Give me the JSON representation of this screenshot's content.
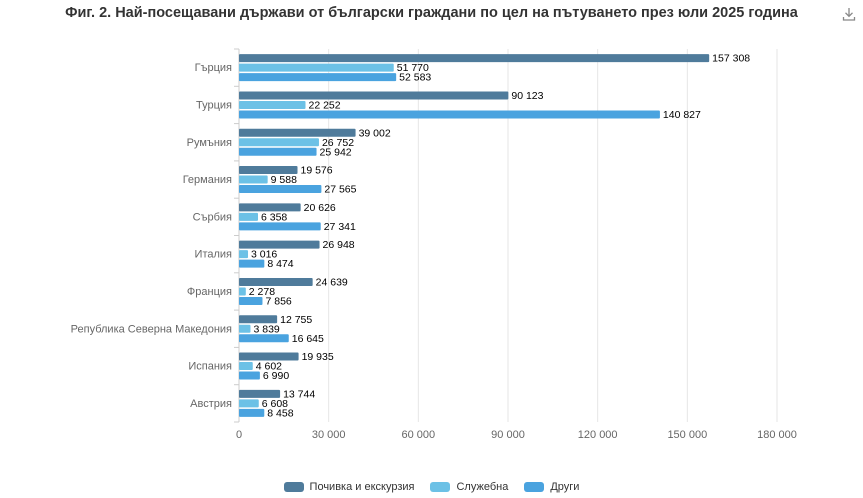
{
  "title": "Фиг. 2. Най-посещавани държави от български граждани по цел на пътуването през юли 2025 година",
  "icons": {
    "download": "download-icon"
  },
  "chart_data": {
    "type": "bar",
    "orientation": "horizontal",
    "categories": [
      "Гърция",
      "Турция",
      "Румъния",
      "Германия",
      "Сърбия",
      "Италия",
      "Франция",
      "Република Северна Македония",
      "Испания",
      "Австрия"
    ],
    "series": [
      {
        "name": "Почивка и екскурзия",
        "color": "#4f7b9b",
        "values": [
          157308,
          90123,
          39002,
          19576,
          20626,
          26948,
          24639,
          12755,
          19935,
          13744
        ],
        "labels": [
          "157 308",
          "90 123",
          "39 002",
          "19 576",
          "20 626",
          "26 948",
          "24 639",
          "12 755",
          "19 935",
          "13 744"
        ]
      },
      {
        "name": "Служебна",
        "color": "#6cc1e6",
        "values": [
          51770,
          22252,
          26752,
          9588,
          6358,
          3016,
          2278,
          3839,
          4602,
          6608
        ],
        "labels": [
          "51 770",
          "22 252",
          "26 752",
          "9 588",
          "6 358",
          "3 016",
          "2 278",
          "3 839",
          "4 602",
          "6 608"
        ]
      },
      {
        "name": "Други",
        "color": "#4aa3df",
        "values": [
          52583,
          140827,
          25942,
          27565,
          27341,
          8474,
          7856,
          16645,
          6990,
          8458
        ],
        "labels": [
          "52 583",
          "140 827",
          "25 942",
          "27 565",
          "27 341",
          "8 474",
          "7 856",
          "16 645",
          "6 990",
          "8 458"
        ]
      }
    ],
    "xlim": [
      0,
      180000
    ],
    "xticks": [
      0,
      30000,
      60000,
      90000,
      120000,
      150000,
      180000
    ],
    "xtick_labels": [
      "0",
      "30 000",
      "60 000",
      "90 000",
      "120 000",
      "150 000",
      "180 000"
    ],
    "grid": true,
    "legend_position": "bottom"
  }
}
